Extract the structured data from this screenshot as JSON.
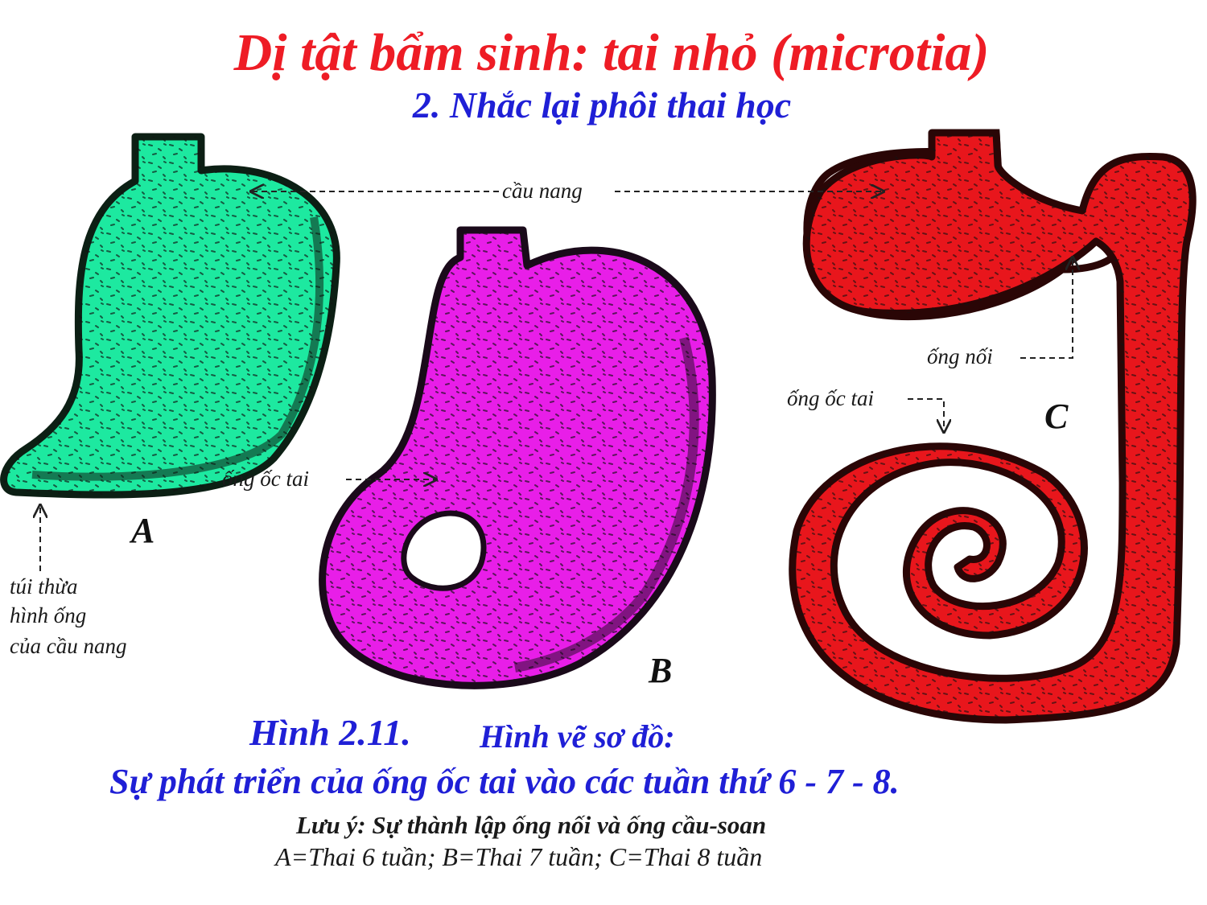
{
  "header": {
    "title": "Dị tật bẩm sinh: tai nhỏ (microtia)",
    "subtitle": "2. Nhắc lại phôi thai học"
  },
  "labels": {
    "cau_nang": "cầu nang",
    "ong_oc_tai_b": "ống ốc tai",
    "ong_oc_tai_c": "ống ốc tai",
    "ong_noi": "ống nối",
    "tui_thua_line1": "túi thừa",
    "tui_thua_line2": "hình ống",
    "tui_thua_line3": "của cầu nang"
  },
  "figures": {
    "a": {
      "letter": "A",
      "color": "#1de9a0"
    },
    "b": {
      "letter": "B",
      "color": "#e81ee8"
    },
    "c": {
      "letter": "C",
      "color": "#e8161c"
    }
  },
  "caption": {
    "figure_number": "Hình 2.11.",
    "figure_title": "Hình vẽ sơ đồ:",
    "line2": "Sự phát triển của ống ốc tai vào các tuần thứ 6 - 7 - 8.",
    "note": "Lưu ý: Sự thành lập ống nối và ống cầu-soan",
    "legend": "A=Thai 6 tuần;  B=Thai 7 tuần;  C=Thai 8 tuần"
  },
  "colors": {
    "title": "#ee1c25",
    "subtitle": "#1f1fd6",
    "outline": "#0c1f14"
  }
}
